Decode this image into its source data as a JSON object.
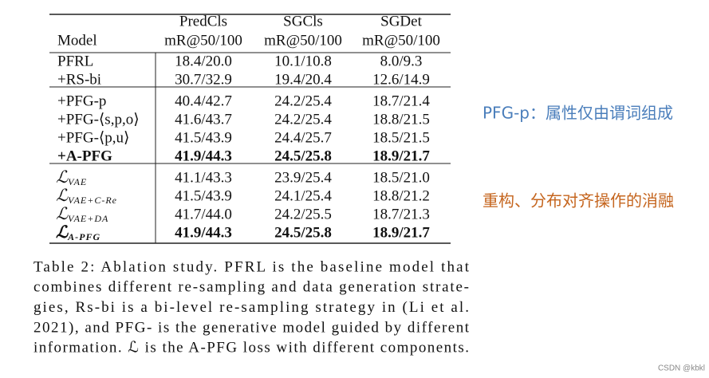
{
  "table": {
    "header": [
      [
        "",
        "PredCls",
        "SGCls",
        "SGDet"
      ],
      [
        "Model",
        "mR@50/100",
        "mR@50/100",
        "mR@50/100"
      ]
    ],
    "groups": [
      [
        {
          "model": "PFRL",
          "cells": [
            "18.4/20.0",
            "10.1/10.8",
            "8.0/9.3"
          ]
        },
        {
          "model": "+RS-bi",
          "cells": [
            "30.7/32.9",
            "19.4/20.4",
            "12.6/14.9"
          ]
        }
      ],
      [
        {
          "model": "+PFG-p",
          "cells": [
            "40.4/42.7",
            "24.2/25.4",
            "18.7/21.4"
          ]
        },
        {
          "model": "+PFG-⟨s,p,o⟩",
          "cells": [
            "41.6/43.7",
            "24.2/25.4",
            "18.8/21.5"
          ]
        },
        {
          "model": "+PFG-⟨p,u⟩",
          "cells": [
            "41.5/43.9",
            "24.4/25.7",
            "18.5/21.5"
          ]
        },
        {
          "model": "+A-PFG",
          "cells": [
            "41.9/44.3",
            "24.5/25.8",
            "18.9/21.7"
          ],
          "bold": true
        }
      ],
      [
        {
          "model": {
            "symbol": "ℒ",
            "subscript": "VAE"
          },
          "cells": [
            "41.1/43.3",
            "23.9/25.4",
            "18.5/21.0"
          ]
        },
        {
          "model": {
            "symbol": "ℒ",
            "subscript": "VAE+C-Re"
          },
          "cells": [
            "41.5/43.9",
            "24.1/25.4",
            "18.8/21.2"
          ]
        },
        {
          "model": {
            "symbol": "ℒ",
            "subscript": "VAE+DA"
          },
          "cells": [
            "41.7/44.0",
            "24.2/25.5",
            "18.7/21.3"
          ]
        },
        {
          "model": {
            "symbol": "ℒ",
            "subscript": "A-PFG"
          },
          "cells": [
            "41.9/44.3",
            "24.5/25.8",
            "18.9/21.7"
          ],
          "bold": true
        }
      ]
    ]
  },
  "caption": [
    "Table 2: Ablation study. PFRL is the baseline model that",
    "combines different re-sampling and data generation strate-",
    "gies, Rs-bi is a bi-level re-sampling strategy in (Li et al.",
    "2021), and PFG- is the generative model guided by different",
    "information. ℒ is the A-PFG loss with different components."
  ],
  "notes": [
    {
      "text": "PFG-p：属性仅由谓词组成",
      "color": "#4a7ebb"
    },
    {
      "text": "重构、分布对齐操作的消融",
      "color": "#c5651e"
    }
  ],
  "watermark": "CSDN @kbkl"
}
